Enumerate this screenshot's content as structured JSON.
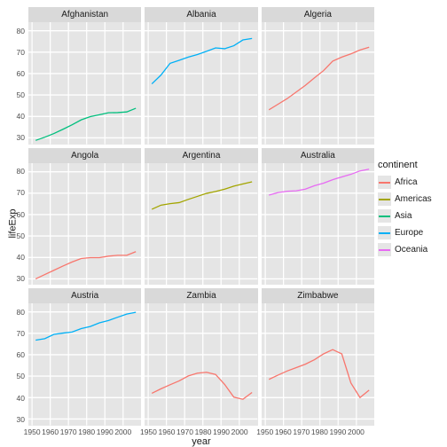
{
  "xlabel": "year",
  "ylabel": "lifeExp",
  "legend_title": "continent",
  "background_color": "#e5e5e5",
  "grid_color": "#ffffff",
  "x_domain": [
    1948,
    2010
  ],
  "y_domain": [
    27,
    84
  ],
  "y_ticks": [
    30,
    40,
    50,
    60,
    70,
    80
  ],
  "x_ticks": [
    1950,
    1960,
    1970,
    1980,
    1990,
    2000
  ],
  "x_years": [
    1952,
    1957,
    1962,
    1967,
    1972,
    1977,
    1982,
    1987,
    1992,
    1997,
    2002,
    2007
  ],
  "continents": [
    {
      "name": "Africa",
      "color": "#f8766d"
    },
    {
      "name": "Americas",
      "color": "#a3a500"
    },
    {
      "name": "Asia",
      "color": "#00bf7d"
    },
    {
      "name": "Europe",
      "color": "#00b0f6"
    },
    {
      "name": "Oceania",
      "color": "#e76bf3"
    }
  ],
  "panels": [
    {
      "title": "Afghanistan",
      "cont": "Asia",
      "y": [
        28.8,
        30.3,
        32.0,
        34.0,
        36.1,
        38.4,
        39.9,
        40.8,
        41.7,
        41.8,
        42.1,
        43.8
      ]
    },
    {
      "title": "Albania",
      "cont": "Europe",
      "y": [
        55.2,
        59.3,
        64.8,
        66.2,
        67.7,
        68.9,
        70.4,
        72.0,
        71.6,
        73.0,
        75.7,
        76.4
      ]
    },
    {
      "title": "Algeria",
      "cont": "Africa",
      "y": [
        43.1,
        45.7,
        48.3,
        51.4,
        54.5,
        58.0,
        61.4,
        65.8,
        67.7,
        69.2,
        71.0,
        72.3
      ]
    },
    {
      "title": "Angola",
      "cont": "Africa",
      "y": [
        30.0,
        32.0,
        34.0,
        36.0,
        37.9,
        39.5,
        39.9,
        39.9,
        40.6,
        41.0,
        41.0,
        42.7
      ]
    },
    {
      "title": "Argentina",
      "cont": "Americas",
      "y": [
        62.5,
        64.4,
        65.1,
        65.6,
        67.1,
        68.5,
        69.9,
        70.8,
        71.9,
        73.3,
        74.3,
        75.3
      ]
    },
    {
      "title": "Australia",
      "cont": "Oceania",
      "y": [
        69.1,
        70.3,
        70.9,
        71.1,
        71.9,
        73.5,
        74.7,
        76.3,
        77.6,
        78.8,
        80.4,
        81.2
      ]
    },
    {
      "title": "Austria",
      "cont": "Europe",
      "y": [
        66.8,
        67.5,
        69.5,
        70.1,
        70.6,
        72.2,
        73.2,
        74.9,
        76.0,
        77.5,
        79.0,
        79.8
      ]
    },
    {
      "title": "Zambia",
      "cont": "Africa",
      "y": [
        42.0,
        44.1,
        46.0,
        47.8,
        50.1,
        51.4,
        51.8,
        50.8,
        46.1,
        40.2,
        39.2,
        42.4
      ]
    },
    {
      "title": "Zimbabwe",
      "cont": "Africa",
      "y": [
        48.5,
        50.5,
        52.4,
        54.0,
        55.6,
        57.7,
        60.4,
        62.4,
        60.4,
        46.8,
        40.0,
        43.5
      ]
    }
  ]
}
